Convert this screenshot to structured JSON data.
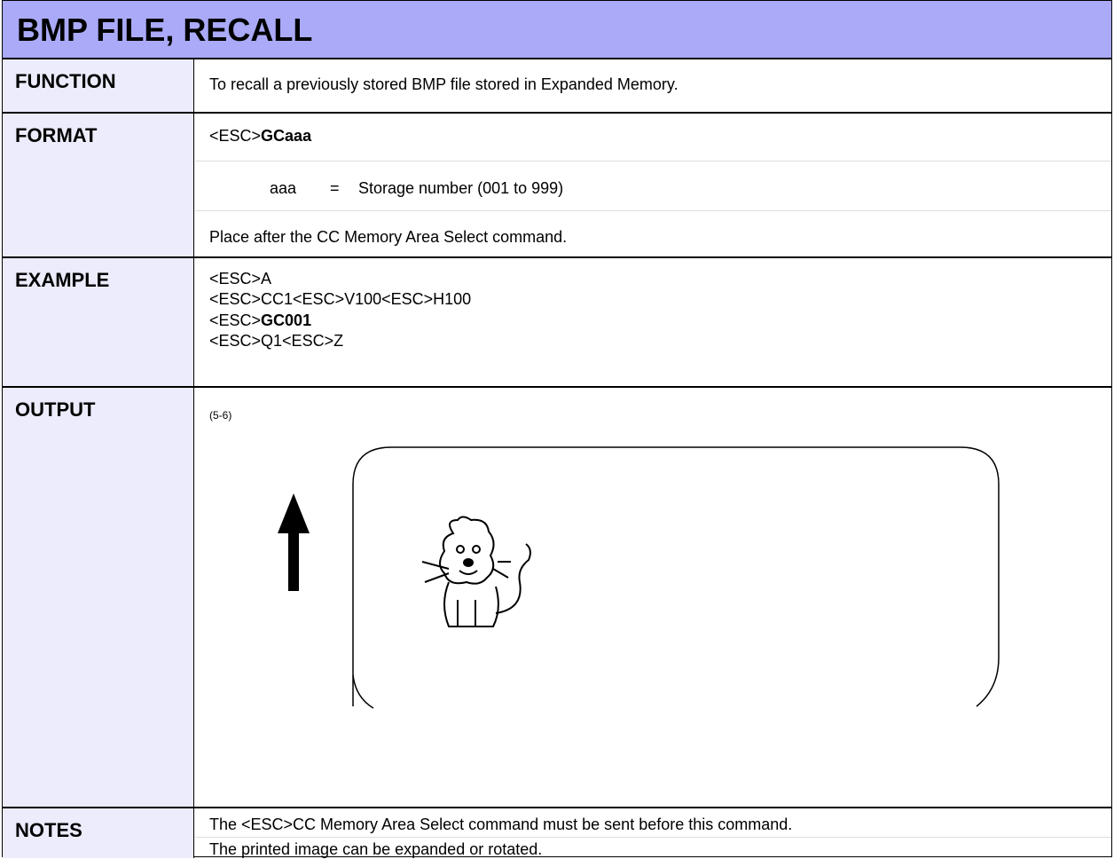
{
  "title": "BMP FILE, RECALL",
  "function": {
    "label": "FUNCTION",
    "text": "To recall a previously stored BMP file stored in Expanded Memory."
  },
  "format": {
    "label": "FORMAT",
    "prefix": "<ESC>",
    "command": "GCaaa",
    "parameter": "aaa",
    "equals": "=",
    "description": "Storage number (001 to 999)",
    "note": "Place after the CC Memory Area Select command."
  },
  "example": {
    "label": "EXAMPLE",
    "line1": "<ESC>A",
    "line2": "<ESC>CC1<ESC>V100<ESC>H100",
    "line3_prefix": "<ESC>",
    "line3_command": "GC001",
    "line4": "<ESC>Q1<ESC>Z"
  },
  "output": {
    "label": "OUTPUT",
    "figure_ref": "(5-6)"
  },
  "notes": {
    "label": "NOTES",
    "lines": [
      "The <ESC>CC Memory Area Select command must be sent before this command.",
      "The printed image can be expanded or rotated."
    ]
  }
}
